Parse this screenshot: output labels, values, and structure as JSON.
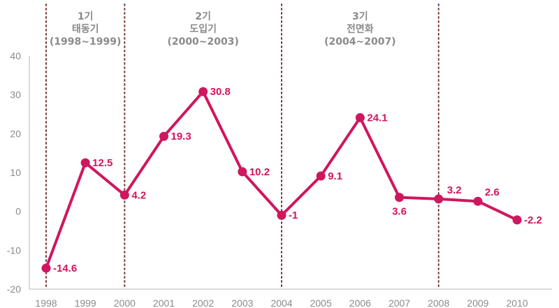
{
  "chart_data": {
    "type": "line",
    "title": "",
    "xlabel": "",
    "ylabel": "",
    "categories": [
      "1998",
      "1999",
      "2000",
      "2001",
      "2002",
      "2003",
      "2004",
      "2005",
      "2006",
      "2007",
      "2008",
      "2009",
      "2010"
    ],
    "series": [
      {
        "values": [
          -14.6,
          12.5,
          4.2,
          19.3,
          30.8,
          10.2,
          -1,
          9.1,
          24.1,
          3.6,
          3.2,
          2.6,
          -2.2
        ]
      }
    ],
    "data_labels": [
      "-14.6",
      "12.5",
      "4.2",
      "19.3",
      "30.8",
      "10.2",
      "-1",
      "9.1",
      "24.1",
      "3.6",
      "3.2",
      "2.6",
      "-2.2"
    ],
    "y_ticks": [
      "40",
      "30",
      "20",
      "10",
      "0",
      "-10",
      "-20"
    ],
    "ylim": [
      -20,
      40
    ],
    "grid": false,
    "color": "#d0165f",
    "divider_color": "#7a3b3b",
    "period_dividers_at": [
      "1998",
      "2000",
      "2004",
      "2008"
    ],
    "phases": [
      {
        "name": "1기",
        "desc": "태동기",
        "range": "(1998~1999)",
        "from": "1998",
        "to": "2000"
      },
      {
        "name": "2기",
        "desc": "도입기",
        "range": "(2000~2003)",
        "from": "2000",
        "to": "2004"
      },
      {
        "name": "3기",
        "desc": "전면화",
        "range": "(2004~2007)",
        "from": "2004",
        "to": "2008"
      }
    ]
  }
}
